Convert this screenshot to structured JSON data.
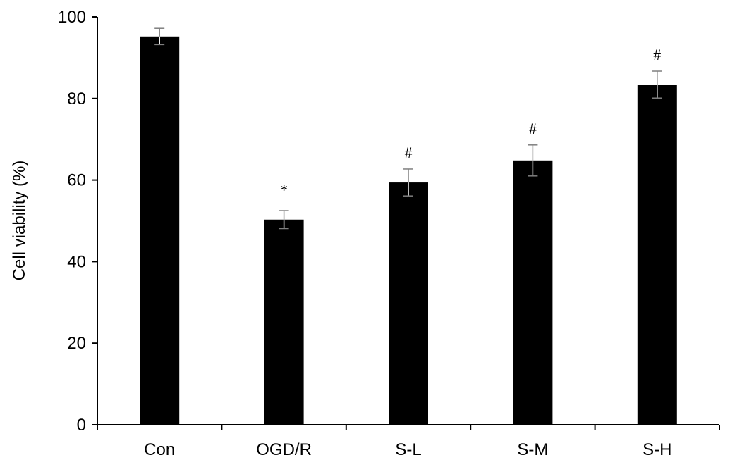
{
  "chart_data": {
    "type": "bar",
    "title": "",
    "xlabel": "",
    "ylabel": "Cell viability (%)",
    "ylim": [
      0,
      100
    ],
    "yticks": [
      0,
      20,
      40,
      60,
      80,
      100
    ],
    "categories": [
      "Con",
      "OGD/R",
      "S-L",
      "S-M",
      "S-H"
    ],
    "values": [
      95.2,
      50.3,
      59.4,
      64.8,
      83.4
    ],
    "errors": [
      2.0,
      2.2,
      3.3,
      3.8,
      3.3
    ],
    "annotations": [
      "",
      "*",
      "#",
      "#",
      "#"
    ],
    "bar_color": "#000000",
    "grid": false,
    "legend": "none"
  }
}
